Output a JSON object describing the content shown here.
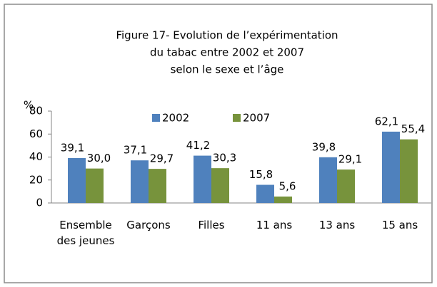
{
  "chart_data": {
    "type": "bar",
    "title": [
      "Figure 17- Evolution de l’expérimentation",
      "du tabac entre 2002 et 2007",
      "selon le sexe et l’âge"
    ],
    "y_label": "%",
    "categories": [
      "Ensemble des jeunes",
      "Garçons",
      "Filles",
      "11 ans",
      "13 ans",
      "15 ans"
    ],
    "series": [
      {
        "name": "2002",
        "color": "#4f81bd",
        "values": [
          39.1,
          37.1,
          41.2,
          15.8,
          39.8,
          62.1
        ],
        "value_labels": [
          "39,1",
          "37,1",
          "41,2",
          "15,8",
          "39,8",
          "62,1"
        ]
      },
      {
        "name": "2007",
        "color": "#77933c",
        "values": [
          30.0,
          29.7,
          30.3,
          5.6,
          29.1,
          55.4
        ],
        "value_labels": [
          "30,0",
          "29,7",
          "30,3",
          "5,6",
          "29,1",
          "55,4"
        ]
      }
    ],
    "ylim": [
      0,
      80
    ],
    "yticks": [
      0,
      20,
      40,
      60,
      80
    ],
    "grid": false,
    "legend": "top"
  }
}
